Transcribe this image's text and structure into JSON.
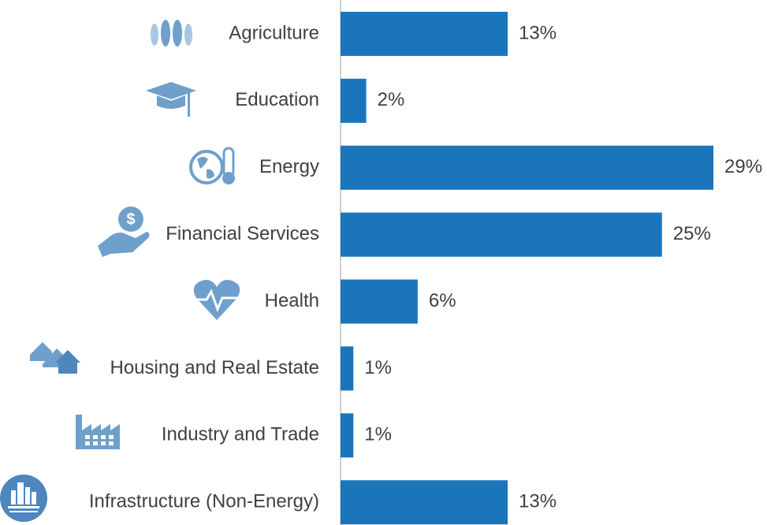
{
  "chart_data": {
    "type": "bar",
    "orientation": "horizontal",
    "categories": [
      "Agriculture",
      "Education",
      "Energy",
      "Financial Services",
      "Health",
      "Housing and Real Estate",
      "Industry and Trade",
      "Infrastructure (Non-Energy)"
    ],
    "values": [
      13,
      2,
      29,
      25,
      6,
      1,
      1,
      13
    ],
    "value_labels": [
      "13%",
      "2%",
      "29%",
      "25%",
      "6%",
      "1%",
      "1%",
      "13%"
    ],
    "color": "#1b75bb"
  }
}
